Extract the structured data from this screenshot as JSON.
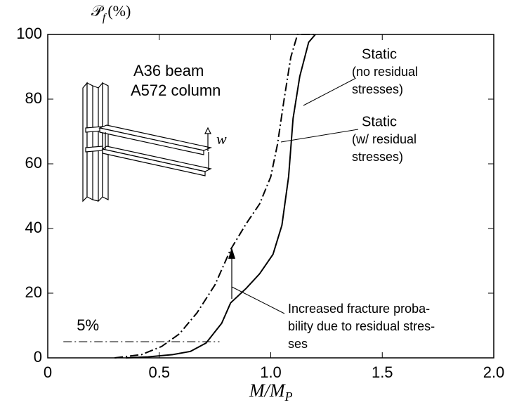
{
  "chart_data": {
    "type": "line",
    "ylabel_symbol": "𝒫",
    "ylabel_subscript": "f",
    "ylabel_unit": "(%)",
    "xlabel": "M/M",
    "xlabel_subscript": "P",
    "xlim": [
      0,
      2.0
    ],
    "ylim": [
      0,
      100
    ],
    "xticks": [
      0,
      0.5,
      {
        "value": 1.0,
        "label": "1.0"
      },
      1.5,
      {
        "value": 2.0,
        "label": "2.0"
      }
    ],
    "yticks": [
      0,
      20,
      40,
      60,
      80,
      100
    ],
    "series": [
      {
        "label_lines": [
          "Static",
          "(no residual",
          "stresses)"
        ],
        "color": "#000000",
        "dash": "solid",
        "x": [
          0.35,
          0.45,
          0.56,
          0.64,
          0.71,
          0.78,
          0.82,
          0.89,
          0.95,
          1.01,
          1.05,
          1.08,
          1.1,
          1.13,
          1.17,
          1.2
        ],
        "values": [
          0,
          0.3,
          1,
          2,
          4.6,
          10.7,
          17,
          21.5,
          26,
          32,
          41,
          56,
          74,
          87,
          97.6,
          100
        ]
      },
      {
        "label_lines": [
          "Static",
          "(w/ residual",
          "stresses)"
        ],
        "color": "#000000",
        "dash": "dashdot",
        "x": [
          0.3,
          0.42,
          0.51,
          0.59,
          0.67,
          0.75,
          0.82,
          0.89,
          0.95,
          1.0,
          1.03,
          1.06,
          1.09,
          1.12,
          1.2
        ],
        "values": [
          0,
          1,
          3.5,
          7.4,
          14,
          22.6,
          33.5,
          41.5,
          47.6,
          56,
          66,
          80,
          93,
          100,
          100
        ]
      }
    ],
    "reference_line": {
      "value": 5,
      "label": "5%"
    },
    "inset_labels": [
      "A36 beam",
      "A572 column",
      "w"
    ],
    "annotation_lines": [
      "Increased fracture proba-",
      "bility due to residual stres-",
      "ses"
    ]
  }
}
